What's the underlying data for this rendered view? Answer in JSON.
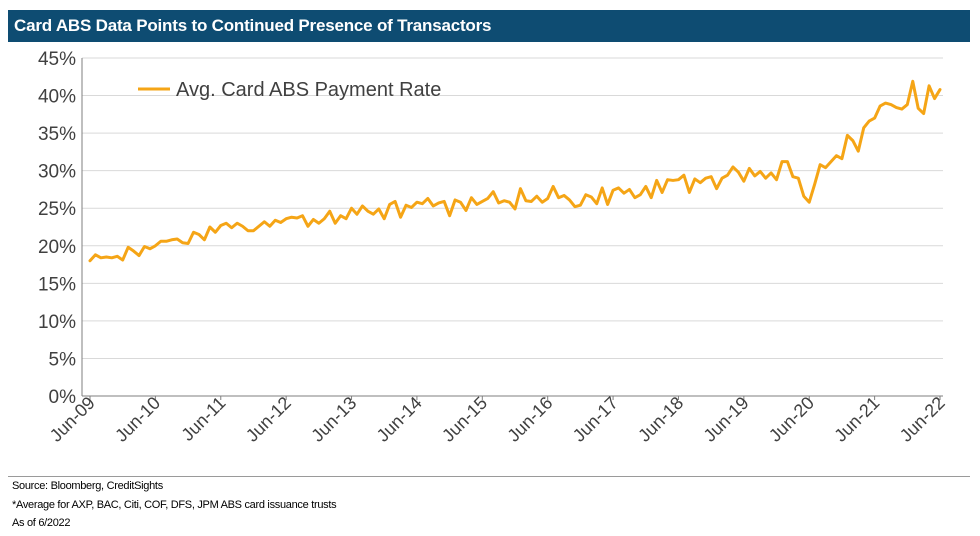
{
  "title": "Card ABS Data Points to Continued Presence of Transactors",
  "footer": {
    "source": "Source: Bloomberg, CreditSights",
    "note": "*Average for AXP, BAC, Citi, COF, DFS, JPM ABS card issuance trusts",
    "asof": "As of 6/2022"
  },
  "colors": {
    "header_bg": "#0e4c72",
    "series_line": "#f5a516",
    "grid": "#d9d9d9"
  },
  "chart_data": {
    "type": "line",
    "title": "Card ABS Data Points to Continued Presence of Transactors",
    "xlabel": "",
    "ylabel": "",
    "ylim": [
      0,
      45
    ],
    "yticks": [
      0,
      5,
      10,
      15,
      20,
      25,
      30,
      35,
      40,
      45
    ],
    "ytick_labels": [
      "0%",
      "5%",
      "10%",
      "15%",
      "20%",
      "25%",
      "30%",
      "35%",
      "40%",
      "45%"
    ],
    "x_start": "Jun-09",
    "x_end": "Jun-22",
    "xtick_labels": [
      "Jun-09",
      "Jun-10",
      "Jun-11",
      "Jun-12",
      "Jun-13",
      "Jun-14",
      "Jun-15",
      "Jun-16",
      "Jun-17",
      "Jun-18",
      "Jun-19",
      "Jun-20",
      "Jun-21",
      "Jun-22"
    ],
    "grid": true,
    "legend": {
      "position": "top-left"
    },
    "series": [
      {
        "name": "Avg. Card ABS Payment Rate",
        "color": "#f5a516",
        "values": [
          18.0,
          18.8,
          18.4,
          18.5,
          18.4,
          18.6,
          18.1,
          19.8,
          19.3,
          18.7,
          19.9,
          19.6,
          20.0,
          20.6,
          20.6,
          20.8,
          20.9,
          20.4,
          20.3,
          21.8,
          21.5,
          20.8,
          22.5,
          21.8,
          22.7,
          23.0,
          22.4,
          23.0,
          22.6,
          22.0,
          22.0,
          22.6,
          23.2,
          22.6,
          23.4,
          23.1,
          23.6,
          23.8,
          23.7,
          24.0,
          22.6,
          23.5,
          23.0,
          23.6,
          24.6,
          23.0,
          24.0,
          23.6,
          25.0,
          24.2,
          25.3,
          24.6,
          24.2,
          24.9,
          23.6,
          25.5,
          25.9,
          23.8,
          25.4,
          25.1,
          25.8,
          25.6,
          26.3,
          25.3,
          25.7,
          25.9,
          24.0,
          26.1,
          25.8,
          24.7,
          26.4,
          25.5,
          25.9,
          26.3,
          27.2,
          25.7,
          26.0,
          25.8,
          24.9,
          27.6,
          26.0,
          25.9,
          26.6,
          25.8,
          26.3,
          27.9,
          26.4,
          26.7,
          26.1,
          25.2,
          25.4,
          26.8,
          26.5,
          25.6,
          27.7,
          25.5,
          27.4,
          27.7,
          27.0,
          27.5,
          26.4,
          26.8,
          27.9,
          26.4,
          28.7,
          27.1,
          28.8,
          28.7,
          28.8,
          29.4,
          27.1,
          28.9,
          28.4,
          29.0,
          29.2,
          27.6,
          29.0,
          29.4,
          30.5,
          29.8,
          28.6,
          30.3,
          29.3,
          29.9,
          29.0,
          29.7,
          28.8,
          31.2,
          31.2,
          29.2,
          29.0,
          26.6,
          25.8,
          28.2,
          30.8,
          30.4,
          31.2,
          32.0,
          31.6,
          34.7,
          34.0,
          32.6,
          35.7,
          36.6,
          37.0,
          38.6,
          39.0,
          38.8,
          38.4,
          38.2,
          38.8,
          41.9,
          38.3,
          37.6,
          41.3,
          39.6,
          40.8
        ]
      }
    ]
  }
}
